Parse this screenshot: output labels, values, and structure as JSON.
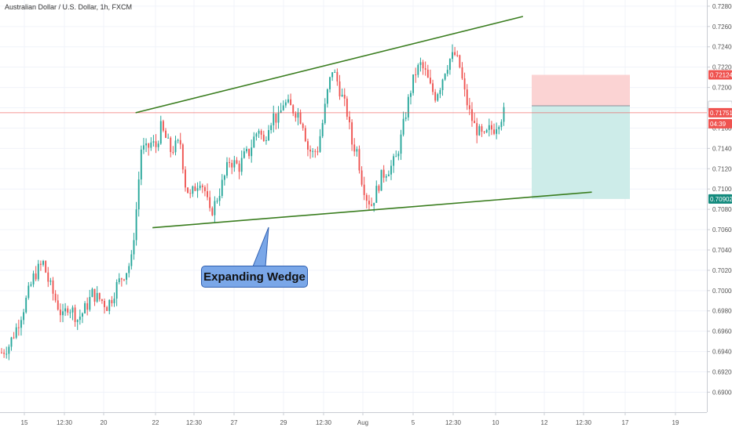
{
  "header": {
    "title": "Australian Dollar / U.S. Dollar, 1h, FXCM"
  },
  "annotation": {
    "label": "Expanding Wedge"
  },
  "colors": {
    "up": "#26a69a",
    "down": "#ef5350",
    "trendline": "#3a7d1f",
    "callout_fill": "#7aa7e8",
    "last_price_line": "#ef5350",
    "stop_zone": "#fbd3d3",
    "target_zone": "#cdece9"
  },
  "price_axis": {
    "ticks": [
      "0.72800",
      "0.72600",
      "0.72400",
      "0.72200",
      "0.72000",
      "0.71800",
      "0.71600",
      "0.71400",
      "0.71200",
      "0.71000",
      "0.70800",
      "0.70600",
      "0.70400",
      "0.70200",
      "0.70000",
      "0.69800",
      "0.69600",
      "0.69400",
      "0.69200",
      "0.69000"
    ],
    "badges": [
      {
        "text": "0.72124",
        "color": "#ef5350"
      },
      {
        "text": "0.71819",
        "color": "#ffffff"
      },
      {
        "text": "0.71751",
        "color": "#ef5350"
      },
      {
        "text": "04:39",
        "color": "#ef5350"
      },
      {
        "text": "0.70902",
        "color": "#138a7d"
      }
    ]
  },
  "time_axis": {
    "labels": [
      "15",
      "12:30",
      "20",
      "22",
      "12:30",
      "27",
      "29",
      "12:30",
      "Aug",
      "5",
      "12:30",
      "10",
      "12",
      "12:30",
      "17",
      "19"
    ]
  },
  "chart_data": {
    "type": "candlestick",
    "y_range": [
      0.6888,
      0.7283
    ],
    "x_range_bars": [
      0,
      276
    ],
    "last_price": 0.71751,
    "position": {
      "entry": 0.71819,
      "stop": 0.72124,
      "target": 0.70902
    },
    "trendlines": [
      {
        "name": "upper",
        "from": {
          "bar": 54.7,
          "price": 0.71751
        },
        "to": {
          "bar": 212.8,
          "price": 0.72699
        }
      },
      {
        "name": "lower",
        "from": {
          "bar": 61.6,
          "price": 0.70619
        },
        "to": {
          "bar": 240.9,
          "price": 0.70969
        }
      }
    ],
    "close_path": [
      [
        0,
        0.6939
      ],
      [
        3,
        0.6946
      ],
      [
        6,
        0.6963
      ],
      [
        9,
        0.6983
      ],
      [
        11,
        0.6998
      ],
      [
        13,
        0.7013
      ],
      [
        15,
        0.7021
      ],
      [
        17,
        0.7027
      ],
      [
        19,
        0.701
      ],
      [
        21,
        0.6997
      ],
      [
        23,
        0.6985
      ],
      [
        25,
        0.6973
      ],
      [
        27,
        0.6985
      ],
      [
        29,
        0.698
      ],
      [
        31,
        0.6972
      ],
      [
        33,
        0.6978
      ],
      [
        35,
        0.6986
      ],
      [
        37,
        0.6997
      ],
      [
        39,
        0.6993
      ],
      [
        41,
        0.699
      ],
      [
        43,
        0.6985
      ],
      [
        45,
        0.6993
      ],
      [
        47,
        0.7005
      ],
      [
        49,
        0.7013
      ],
      [
        51,
        0.702
      ],
      [
        53,
        0.703
      ],
      [
        55,
        0.708
      ],
      [
        57,
        0.714
      ],
      [
        59,
        0.7138
      ],
      [
        61,
        0.7145
      ],
      [
        63,
        0.7142
      ],
      [
        65,
        0.716
      ],
      [
        67,
        0.715
      ],
      [
        69,
        0.7138
      ],
      [
        71,
        0.7142
      ],
      [
        73,
        0.7145
      ],
      [
        75,
        0.7105
      ],
      [
        77,
        0.7092
      ],
      [
        79,
        0.7102
      ],
      [
        81,
        0.711
      ],
      [
        83,
        0.7098
      ],
      [
        85,
        0.7075
      ],
      [
        87,
        0.7085
      ],
      [
        89,
        0.7098
      ],
      [
        91,
        0.7112
      ],
      [
        93,
        0.7128
      ],
      [
        95,
        0.7125
      ],
      [
        97,
        0.7122
      ],
      [
        99,
        0.7132
      ],
      [
        101,
        0.7136
      ],
      [
        103,
        0.715
      ],
      [
        105,
        0.716
      ],
      [
        107,
        0.7145
      ],
      [
        109,
        0.7165
      ],
      [
        111,
        0.7172
      ],
      [
        113,
        0.7168
      ],
      [
        115,
        0.7185
      ],
      [
        117,
        0.7182
      ],
      [
        119,
        0.7178
      ],
      [
        121,
        0.7175
      ],
      [
        123,
        0.7165
      ],
      [
        125,
        0.714
      ],
      [
        127,
        0.7135
      ],
      [
        129,
        0.714
      ],
      [
        131,
        0.7165
      ],
      [
        133,
        0.7195
      ],
      [
        135,
        0.7218
      ],
      [
        137,
        0.7206
      ],
      [
        139,
        0.719
      ],
      [
        141,
        0.7175
      ],
      [
        143,
        0.7145
      ],
      [
        145,
        0.7138
      ],
      [
        147,
        0.711
      ],
      [
        149,
        0.7092
      ],
      [
        151,
        0.7085
      ],
      [
        153,
        0.7098
      ],
      [
        155,
        0.7112
      ],
      [
        157,
        0.7118
      ],
      [
        159,
        0.7122
      ],
      [
        161,
        0.713
      ],
      [
        163,
        0.715
      ],
      [
        165,
        0.7175
      ],
      [
        167,
        0.7198
      ],
      [
        169,
        0.7215
      ],
      [
        171,
        0.7222
      ],
      [
        173,
        0.7214
      ],
      [
        175,
        0.72
      ],
      [
        177,
        0.7192
      ],
      [
        179,
        0.7202
      ],
      [
        181,
        0.7218
      ],
      [
        183,
        0.7228
      ],
      [
        185,
        0.7232
      ],
      [
        187,
        0.722
      ],
      [
        189,
        0.7194
      ],
      [
        191,
        0.7175
      ],
      [
        193,
        0.7162
      ],
      [
        195,
        0.7155
      ],
      [
        197,
        0.715
      ],
      [
        199,
        0.7158
      ],
      [
        201,
        0.716
      ],
      [
        203,
        0.7168
      ],
      [
        205,
        0.7175
      ]
    ]
  }
}
